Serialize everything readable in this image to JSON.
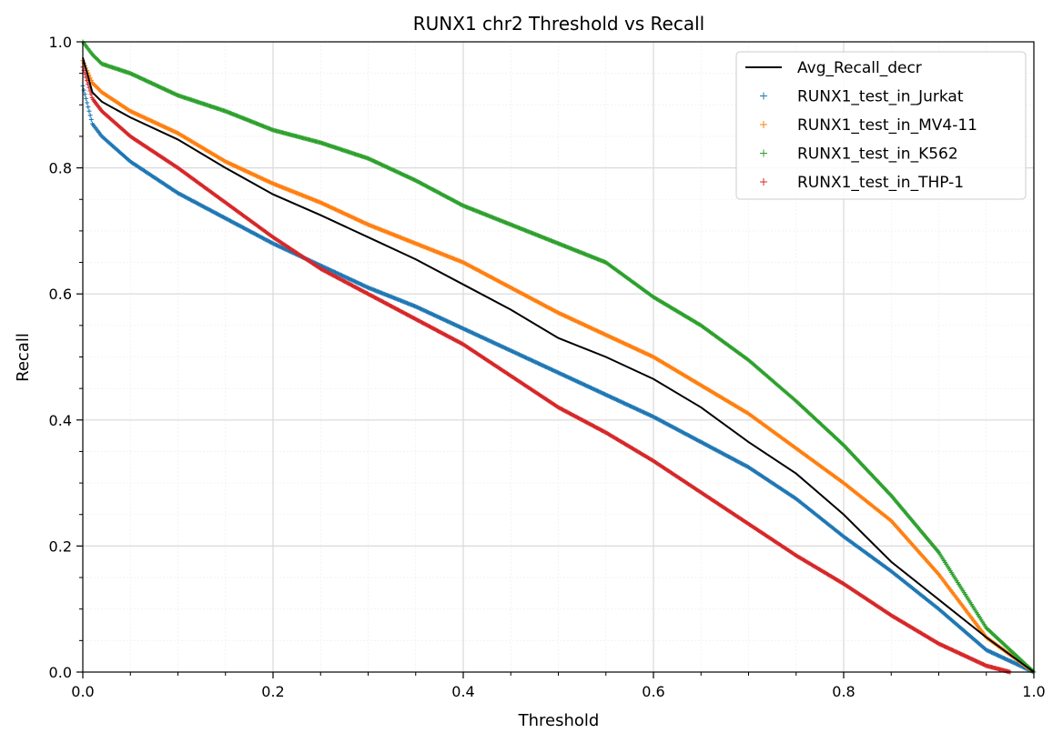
{
  "chart_data": {
    "type": "scatter",
    "title": "RUNX1 chr2 Threshold vs Recall",
    "xlabel": "Threshold",
    "ylabel": "Recall",
    "xlim": [
      0.0,
      1.0
    ],
    "ylim": [
      0.0,
      1.0
    ],
    "xticks": [
      "0.0",
      "0.2",
      "0.4",
      "0.6",
      "0.8",
      "1.0"
    ],
    "yticks": [
      "0.0",
      "0.2",
      "0.4",
      "0.6",
      "0.8",
      "1.0"
    ],
    "grid": true,
    "minor_grid": true,
    "legend_position": "top-right",
    "series": [
      {
        "name": "Avg_Recall_decr",
        "kind": "line",
        "color": "#000000",
        "x": [
          0.0,
          0.01,
          0.02,
          0.05,
          0.1,
          0.15,
          0.2,
          0.25,
          0.3,
          0.35,
          0.4,
          0.45,
          0.5,
          0.55,
          0.6,
          0.65,
          0.7,
          0.75,
          0.8,
          0.85,
          0.9,
          0.95,
          1.0
        ],
        "y": [
          0.975,
          0.92,
          0.905,
          0.88,
          0.845,
          0.8,
          0.758,
          0.725,
          0.69,
          0.655,
          0.615,
          0.575,
          0.53,
          0.5,
          0.465,
          0.42,
          0.365,
          0.315,
          0.25,
          0.175,
          0.115,
          0.055,
          0.0
        ]
      },
      {
        "name": "RUNX1_test_in_Jurkat",
        "kind": "markers",
        "color": "#1f77b4",
        "x": [
          0.0,
          0.01,
          0.02,
          0.05,
          0.1,
          0.15,
          0.2,
          0.25,
          0.3,
          0.35,
          0.4,
          0.45,
          0.5,
          0.55,
          0.6,
          0.65,
          0.7,
          0.75,
          0.8,
          0.85,
          0.9,
          0.95,
          1.0
        ],
        "y": [
          0.93,
          0.87,
          0.85,
          0.81,
          0.76,
          0.72,
          0.68,
          0.645,
          0.61,
          0.58,
          0.545,
          0.51,
          0.475,
          0.44,
          0.405,
          0.365,
          0.325,
          0.275,
          0.215,
          0.16,
          0.1,
          0.035,
          0.0
        ]
      },
      {
        "name": "RUNX1_test_in_MV4-11",
        "kind": "markers",
        "color": "#ff7f0e",
        "x": [
          0.0,
          0.01,
          0.02,
          0.05,
          0.1,
          0.15,
          0.2,
          0.25,
          0.3,
          0.35,
          0.4,
          0.45,
          0.5,
          0.55,
          0.6,
          0.65,
          0.7,
          0.75,
          0.8,
          0.85,
          0.9,
          0.95,
          1.0
        ],
        "y": [
          0.97,
          0.935,
          0.92,
          0.89,
          0.855,
          0.81,
          0.775,
          0.745,
          0.71,
          0.68,
          0.65,
          0.61,
          0.57,
          0.535,
          0.5,
          0.455,
          0.41,
          0.355,
          0.3,
          0.24,
          0.155,
          0.055,
          0.0
        ]
      },
      {
        "name": "RUNX1_test_in_K562",
        "kind": "markers",
        "color": "#2ca02c",
        "x": [
          0.0,
          0.01,
          0.02,
          0.05,
          0.1,
          0.15,
          0.2,
          0.25,
          0.3,
          0.35,
          0.4,
          0.45,
          0.5,
          0.55,
          0.6,
          0.65,
          0.7,
          0.75,
          0.8,
          0.85,
          0.9,
          0.95,
          1.0
        ],
        "y": [
          1.0,
          0.98,
          0.965,
          0.95,
          0.915,
          0.89,
          0.86,
          0.84,
          0.815,
          0.78,
          0.74,
          0.71,
          0.68,
          0.65,
          0.595,
          0.55,
          0.495,
          0.43,
          0.36,
          0.28,
          0.19,
          0.07,
          0.0
        ]
      },
      {
        "name": "RUNX1_test_in_THP-1",
        "kind": "markers",
        "color": "#d62728",
        "x": [
          0.0,
          0.01,
          0.02,
          0.05,
          0.1,
          0.15,
          0.2,
          0.25,
          0.3,
          0.35,
          0.4,
          0.45,
          0.5,
          0.55,
          0.6,
          0.65,
          0.7,
          0.75,
          0.8,
          0.85,
          0.9,
          0.95,
          0.975
        ],
        "y": [
          0.96,
          0.91,
          0.89,
          0.85,
          0.8,
          0.745,
          0.69,
          0.64,
          0.6,
          0.56,
          0.52,
          0.47,
          0.42,
          0.38,
          0.335,
          0.285,
          0.235,
          0.185,
          0.14,
          0.09,
          0.045,
          0.01,
          0.0
        ]
      }
    ]
  }
}
